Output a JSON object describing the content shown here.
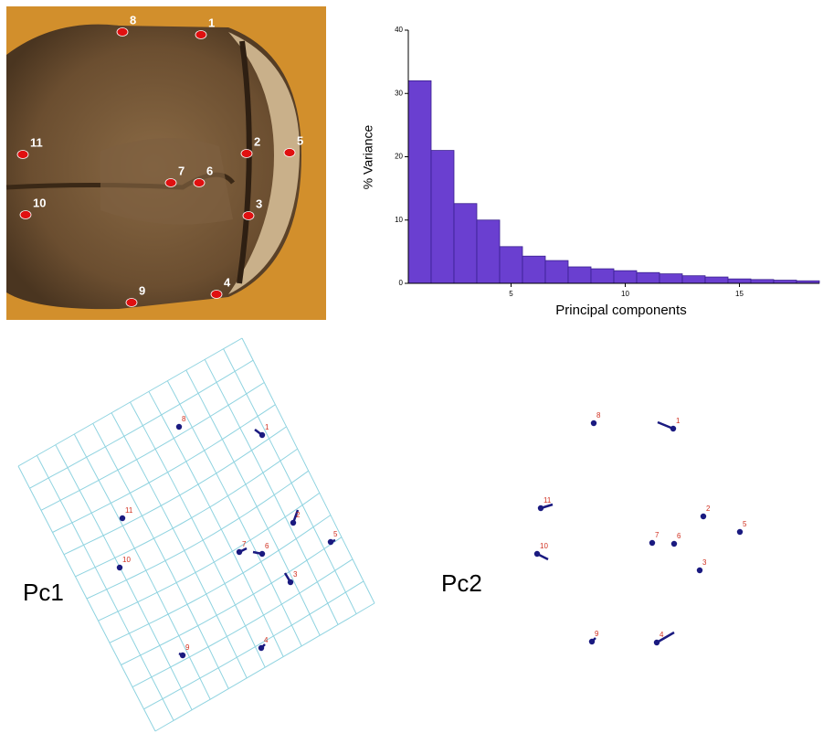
{
  "chart_data": {
    "type": "bar",
    "ylabel": "% Variance",
    "xlabel": "Principal components",
    "values": [
      32,
      21,
      12.6,
      10,
      5.8,
      4.3,
      3.6,
      2.6,
      2.3,
      2,
      1.7,
      1.5,
      1.2,
      1,
      0.7,
      0.6,
      0.5,
      0.4
    ],
    "x": [
      1,
      2,
      3,
      4,
      5,
      6,
      7,
      8,
      9,
      10,
      11,
      12,
      13,
      14,
      15,
      16,
      17,
      18
    ],
    "color": "#6a3fd0",
    "xlim": [
      0.5,
      18.5
    ],
    "xticks": [
      5,
      10,
      15
    ],
    "ylim": [
      0,
      40
    ],
    "yticks": [
      0,
      10,
      20,
      30,
      40
    ]
  },
  "photo": {
    "landmarks": [
      "1",
      "2",
      "3",
      "4",
      "5",
      "6",
      "7",
      "8",
      "9",
      "10",
      "11"
    ]
  },
  "pc1": {
    "title": "Pc1",
    "landmarks": [
      "1",
      "2",
      "3",
      "4",
      "5",
      "6",
      "7",
      "8",
      "9",
      "10",
      "11"
    ]
  },
  "pc2": {
    "title": "Pc2",
    "landmarks": [
      "1",
      "2",
      "3",
      "4",
      "5",
      "6",
      "7",
      "8",
      "9",
      "10",
      "11"
    ]
  }
}
